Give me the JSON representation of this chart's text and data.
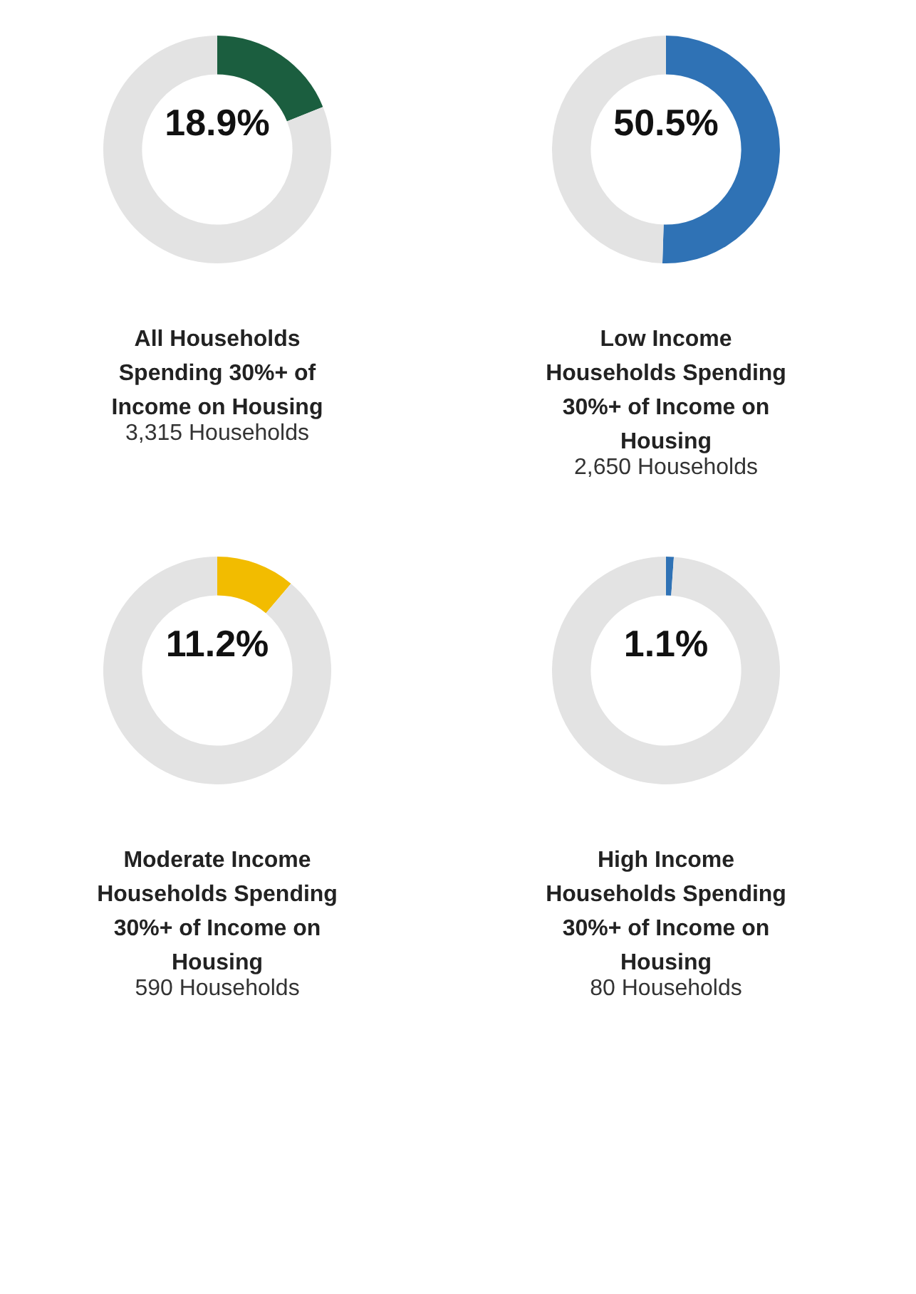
{
  "chart_data": [
    {
      "type": "donut",
      "title": "All Households Spending 30%+ of Income on Housing",
      "subtitle": "3,315 Households",
      "categories": [
        null,
        null
      ],
      "values": [
        18.9,
        81.1
      ],
      "colors": [
        "#1b5e3f",
        "#e3e3e3"
      ],
      "value_labels": [
        "18.9%",
        null
      ],
      "legend": false
    },
    {
      "type": "donut",
      "title": "Low Income Households Spending 30%+ of Income on Housing",
      "subtitle": "2,650 Households",
      "categories": [
        null,
        null
      ],
      "values": [
        50.5,
        49.5
      ],
      "colors": [
        "#2f72b5",
        "#e3e3e3"
      ],
      "value_labels": [
        "50.5%",
        null
      ],
      "legend": false
    },
    {
      "type": "donut",
      "title": "Moderate Income Households Spending 30%+ of Income on Housing",
      "subtitle": "590 Households",
      "categories": [
        null,
        null
      ],
      "values": [
        11.2,
        88.8
      ],
      "colors": [
        "#f2bc00",
        "#e3e3e3"
      ],
      "value_labels": [
        "11.2%",
        null
      ],
      "legend": false
    },
    {
      "type": "donut",
      "title": "High Income Households Spending 30%+ of Income on Housing",
      "subtitle": "80 Households",
      "categories": [
        null,
        null
      ],
      "values": [
        1.1,
        98.9
      ],
      "colors": [
        "#2f72b5",
        "#e3e3e3"
      ],
      "value_labels": [
        "1.1%",
        null
      ],
      "legend": false
    }
  ]
}
